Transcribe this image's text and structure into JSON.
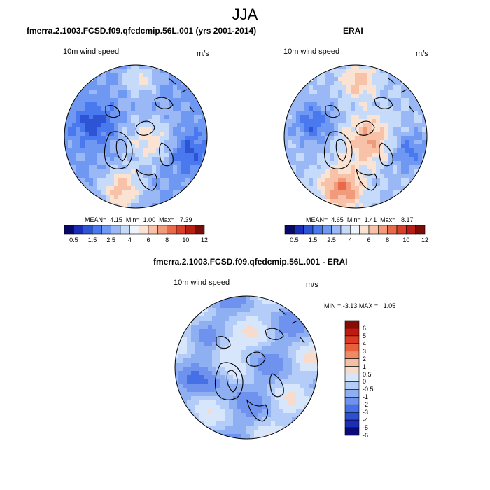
{
  "title": "JJA",
  "panels": [
    {
      "title": "fmerra.2.1003.FCSD.f09.qfedcmip.56L.001 (yrs 2001-2014)",
      "variable": "10m wind speed",
      "units": "m/s",
      "stats": {
        "mean_label": "MEAN=",
        "mean": "4.15",
        "min_label": "Min=",
        "min": "1.00",
        "max_label": "Max=",
        "max": "7.39"
      }
    },
    {
      "title": "ERAI",
      "variable": "10m wind speed",
      "units": "m/s",
      "stats": {
        "mean_label": "MEAN=",
        "mean": "4.65",
        "min_label": "Min=",
        "min": "1.41",
        "max_label": "Max=",
        "max": "8.17"
      }
    },
    {
      "title": "fmerra.2.1003.FCSD.f09.qfedcmip.56L.001 - ERAI",
      "variable": "10m wind speed",
      "units": "m/s",
      "stats": {
        "min_label": "MIN =",
        "min": "-3.13",
        "max_label": "MAX =",
        "max": "1.05"
      }
    }
  ],
  "colorbar_abs": {
    "colors": [
      "#08086b",
      "#1b2cb8",
      "#2e54d6",
      "#4a78ee",
      "#6e98f2",
      "#9ab8f6",
      "#c6daf9",
      "#eef4fc",
      "#fbe3d4",
      "#f7c2a8",
      "#f29a7c",
      "#e96a4b",
      "#d8402a",
      "#b81e14",
      "#7a0d08"
    ],
    "ticks": [
      "0.5",
      "1.5",
      "2.5",
      "4",
      "6",
      "8",
      "10",
      "12"
    ]
  },
  "colorbar_diff": {
    "colors": [
      "#0a0a7a",
      "#1c2eb8",
      "#2e4fd0",
      "#4670e6",
      "#6e92ee",
      "#8eb0f3",
      "#b4cdf8",
      "#d8e6fb",
      "#f7dccd",
      "#f3bfa6",
      "#ef8a66",
      "#e8603e",
      "#dc3a22",
      "#c01a0e",
      "#8a0a04"
    ],
    "ticks": [
      "6",
      "5",
      "4",
      "3",
      "2",
      "1",
      "0.5",
      "0",
      "-0.5",
      "-1",
      "-2",
      "-3",
      "-4",
      "-5",
      "-6"
    ]
  },
  "map_palettes": {
    "model": [
      "#2e54d6",
      "#4a78ee",
      "#6e98f2",
      "#9ab8f6",
      "#c6daf9",
      "#fbe3d4",
      "#f7c2a8",
      "#f29a7c"
    ],
    "erai": [
      "#2e54d6",
      "#4a78ee",
      "#6e98f2",
      "#9ab8f6",
      "#c6daf9",
      "#fbe3d4",
      "#f7c2a8",
      "#f29a7c",
      "#e96a4b"
    ],
    "diff": [
      "#4670e6",
      "#6e92ee",
      "#8eb0f3",
      "#b4cdf8",
      "#d8e6fb",
      "#f7dccd",
      "#f3bfa6"
    ],
    "coast": "#000000"
  }
}
